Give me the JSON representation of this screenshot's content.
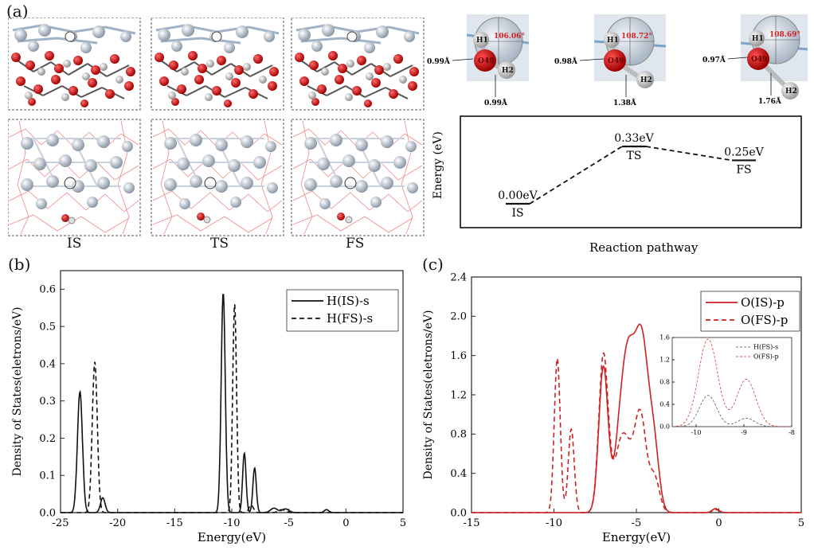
{
  "panel_a": {
    "label": "(a)",
    "states": [
      {
        "name": "IS",
        "angle": "106.06°",
        "oh_top": "0.99Å",
        "oh_bottom": "0.99Å"
      },
      {
        "name": "TS",
        "angle": "108.72°",
        "oh_top": "0.98Å",
        "oh_bottom": "1.38Å"
      },
      {
        "name": "FS",
        "angle": "108.69°",
        "oh_top": "0.97Å",
        "oh_bottom": "1.76Å"
      }
    ],
    "atom_labels": {
      "h1": "H1",
      "o": "O49",
      "h2": "H2"
    },
    "colors": {
      "oxygen": "#d41414",
      "metal": "#b9c6d4",
      "hydrogen": "#e8e8e8",
      "label_red": "#d42020"
    }
  },
  "pathway": {
    "ylabel": "Energy (eV)",
    "xlabel": "Reaction pathway",
    "levels": [
      {
        "state": "IS",
        "energy": 0.0,
        "label": "0.00eV"
      },
      {
        "state": "TS",
        "energy": 0.33,
        "label": "0.33eV"
      },
      {
        "state": "FS",
        "energy": 0.25,
        "label": "0.25eV"
      }
    ]
  },
  "chart_data": [
    {
      "panel": "(b)",
      "type": "line",
      "title": "",
      "xlabel": "Energy(eV)",
      "ylabel": "Density of States(eletrons/eV)",
      "xlim": [
        -25,
        5
      ],
      "ylim": [
        0,
        0.65
      ],
      "xticks": [
        -25,
        -20,
        -15,
        -10,
        -5,
        0,
        5
      ],
      "yticks": [
        0.0,
        0.1,
        0.2,
        0.3,
        0.4,
        0.5,
        0.6
      ],
      "grid": false,
      "legend_position": "top-right",
      "color": "#111111",
      "series": [
        {
          "name": "H(IS)-s",
          "style": "solid",
          "peaks": [
            [
              -23.3,
              0.325,
              0.22
            ],
            [
              -21.3,
              0.04,
              0.2
            ],
            [
              -10.75,
              0.59,
              0.18
            ],
            [
              -8.9,
              0.16,
              0.15
            ],
            [
              -8.0,
              0.12,
              0.15
            ],
            [
              -6.3,
              0.012,
              0.3
            ],
            [
              -5.3,
              0.01,
              0.3
            ],
            [
              -1.7,
              0.008,
              0.2
            ]
          ]
        },
        {
          "name": "H(FS)-s",
          "style": "dashed",
          "peaks": [
            [
              -22.0,
              0.405,
              0.22
            ],
            [
              -9.75,
              0.56,
              0.17
            ],
            [
              -8.3,
              0.02,
              0.2
            ],
            [
              -5.6,
              0.008,
              0.3
            ]
          ]
        }
      ]
    },
    {
      "panel": "(c)",
      "type": "line",
      "title": "",
      "xlabel": "Energy(eV)",
      "ylabel": "Density of States(eletrons/eV)",
      "xlim": [
        -15,
        5
      ],
      "ylim": [
        0,
        2.4
      ],
      "xticks": [
        -15,
        -10,
        -5,
        0,
        5
      ],
      "yticks": [
        0.0,
        0.4,
        0.8,
        1.2,
        1.6,
        2.0,
        2.4
      ],
      "grid": false,
      "legend_position": "top-right",
      "color": "#cc2222",
      "series": [
        {
          "name": "O(IS)-p",
          "style": "solid",
          "peaks": [
            [
              -7.0,
              1.48,
              0.28
            ],
            [
              -6.0,
              0.7,
              0.35
            ],
            [
              -5.5,
              1.15,
              0.35
            ],
            [
              -4.7,
              1.8,
              0.45
            ],
            [
              -3.9,
              0.5,
              0.3
            ],
            [
              -0.2,
              0.04,
              0.2
            ]
          ]
        },
        {
          "name": "O(FS)-p",
          "style": "dashed",
          "peaks": [
            [
              -9.8,
              1.57,
              0.18
            ],
            [
              -8.95,
              0.85,
              0.18
            ],
            [
              -7.0,
              1.58,
              0.28
            ],
            [
              -5.8,
              0.8,
              0.5
            ],
            [
              -4.75,
              0.95,
              0.35
            ],
            [
              -3.9,
              0.35,
              0.3
            ],
            [
              -0.2,
              0.03,
              0.2
            ]
          ]
        }
      ]
    },
    {
      "panel": "(c)-inset",
      "type": "line",
      "xlim": [
        -10.5,
        -8
      ],
      "ylim": [
        0,
        1.6
      ],
      "xticks": [
        -10,
        -9,
        -8
      ],
      "yticks": [
        0.0,
        0.4,
        0.8,
        1.2,
        1.6
      ],
      "legend_position": "top-right",
      "color": "#444444",
      "series": [
        {
          "name": "H(FS)-s",
          "style": "dashed",
          "peaks": [
            [
              -9.75,
              0.56,
              0.18
            ],
            [
              -8.95,
              0.15,
              0.18
            ]
          ]
        },
        {
          "name": "O(FS)-p",
          "style": "dashed-red",
          "peaks": [
            [
              -9.75,
              1.57,
              0.2
            ],
            [
              -8.95,
              0.85,
              0.2
            ]
          ]
        }
      ]
    }
  ]
}
